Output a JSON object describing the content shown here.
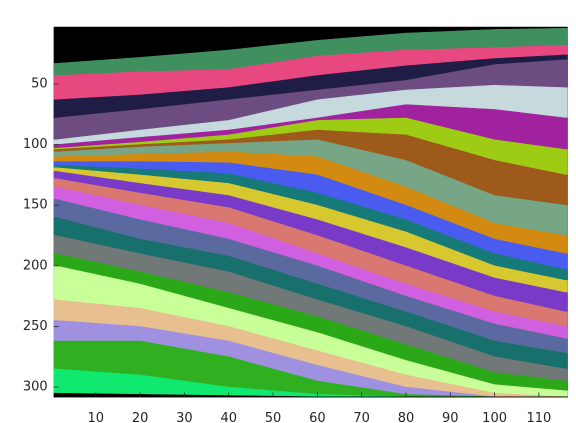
{
  "chart_data": {
    "type": "layers",
    "y_reversed": true,
    "x": [
      1,
      20,
      40,
      60,
      80,
      100,
      116
    ],
    "layers": [
      {
        "color": "#000000",
        "top": [
          3,
          3,
          3,
          3,
          3,
          3,
          3
        ]
      },
      {
        "color": "#3f8f5f",
        "top": [
          33,
          28,
          22,
          14,
          8,
          5,
          4
        ]
      },
      {
        "color": "#e84880",
        "top": [
          43,
          40,
          38,
          27,
          22,
          20,
          18
        ]
      },
      {
        "color": "#1f1d45",
        "top": [
          63,
          59,
          53,
          43,
          35,
          29,
          26
        ]
      },
      {
        "color": "#6d4c82",
        "top": [
          78,
          71,
          63,
          55,
          47,
          34,
          30
        ]
      },
      {
        "color": "#c6dadd",
        "top": [
          96,
          88,
          80,
          63,
          55,
          51,
          53
        ]
      },
      {
        "color": "#a0229e",
        "top": [
          100,
          94,
          88,
          78,
          67,
          71,
          78
        ]
      },
      {
        "color": "#9ecb14",
        "top": [
          103,
          98,
          92,
          80,
          78,
          96,
          104
        ]
      },
      {
        "color": "#9e5a1a",
        "top": [
          104,
          100,
          96,
          88,
          92,
          113,
          125
        ]
      },
      {
        "color": "#76a686",
        "top": [
          106,
          102,
          99,
          96,
          113,
          142,
          150
        ]
      },
      {
        "color": "#d28a10",
        "top": [
          110,
          108,
          106,
          110,
          135,
          165,
          175
        ]
      },
      {
        "color": "#4a5cf0",
        "top": [
          114,
          114,
          115,
          125,
          150,
          178,
          190
        ]
      },
      {
        "color": "#157a78",
        "top": [
          117,
          120,
          124,
          140,
          162,
          190,
          203
        ]
      },
      {
        "color": "#d8c830",
        "top": [
          119,
          125,
          132,
          150,
          172,
          200,
          212
        ]
      },
      {
        "color": "#7a3ac8",
        "top": [
          122,
          132,
          142,
          162,
          185,
          210,
          222
        ]
      },
      {
        "color": "#d87870",
        "top": [
          128,
          140,
          152,
          175,
          200,
          225,
          238
        ]
      },
      {
        "color": "#d060e0",
        "top": [
          135,
          150,
          165,
          190,
          215,
          238,
          250
        ]
      },
      {
        "color": "#5a6aa0",
        "top": [
          145,
          162,
          178,
          200,
          225,
          248,
          260
        ]
      },
      {
        "color": "#18706c",
        "top": [
          160,
          178,
          192,
          215,
          238,
          262,
          272
        ]
      },
      {
        "color": "#707878",
        "top": [
          175,
          190,
          205,
          228,
          250,
          275,
          285
        ]
      },
      {
        "color": "#2aa818",
        "top": [
          190,
          205,
          222,
          242,
          265,
          288,
          295
        ]
      },
      {
        "color": "#c8ff98",
        "top": [
          200,
          215,
          235,
          255,
          278,
          298,
          303
        ]
      },
      {
        "color": "#e8c090",
        "top": [
          228,
          235,
          250,
          270,
          290,
          305,
          308
        ]
      },
      {
        "color": "#a090e0",
        "top": [
          245,
          250,
          262,
          282,
          300,
          308,
          308
        ]
      },
      {
        "color": "#30b020",
        "top": [
          262,
          262,
          275,
          295,
          306,
          308,
          308
        ]
      },
      {
        "color": "#10e870",
        "top": [
          285,
          290,
          300,
          306,
          308,
          308,
          308
        ]
      },
      {
        "color": "#000000",
        "top": [
          305,
          306,
          307,
          308,
          308,
          308,
          308
        ]
      }
    ],
    "xlim": [
      0.5,
      116.5
    ],
    "ylim": [
      2.5,
      308.5
    ],
    "xticks": [
      10,
      20,
      30,
      40,
      50,
      60,
      70,
      80,
      90,
      100,
      110
    ],
    "yticks": [
      50,
      100,
      150,
      200,
      250,
      300
    ]
  }
}
